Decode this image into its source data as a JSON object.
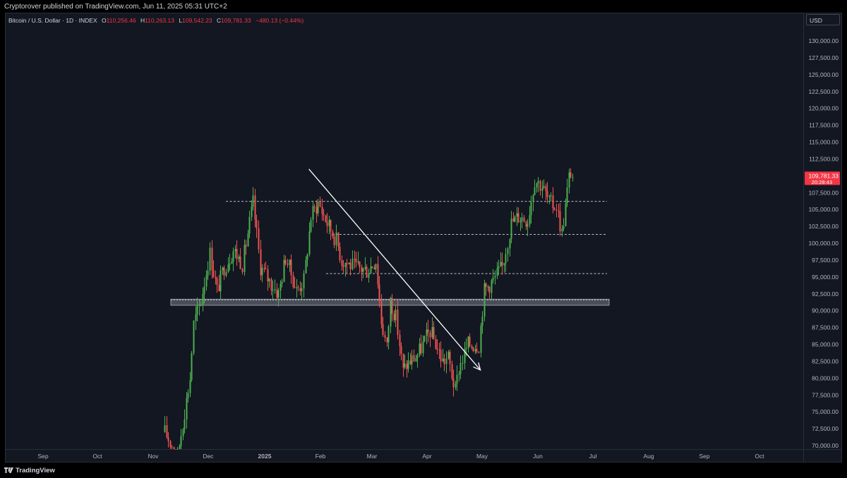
{
  "publisher_line": "Cryptorover published on TradingView.com, Jun 11, 2025 05:31 UTC+2",
  "legend": {
    "symbol": "Bitcoin / U.S. Dollar · 1D · INDEX",
    "o_label": "O",
    "o_value": "110,256.46",
    "h_label": "H",
    "h_value": "110,263.13",
    "l_label": "L",
    "l_value": "109,542.23",
    "c_label": "C",
    "c_value": "109,781.33",
    "change": "−480.13 (−0.44%)"
  },
  "currency_label": "USD",
  "last_price_label": {
    "price": "109,781.33",
    "countdown": "20:28:43"
  },
  "brand": "TradingView",
  "colors": {
    "up": "#26a69a",
    "up_bright": "#4caf50",
    "down": "#ef5350",
    "background": "#131722",
    "price_tag": "#f23645"
  },
  "chart_data": {
    "type": "candlestick",
    "title": "",
    "ylim": [
      69000,
      134000
    ],
    "x_ticks": [
      "Sep",
      "Oct",
      "Nov",
      "Dec",
      "2025",
      "Feb",
      "Mar",
      "Apr",
      "May",
      "Jun",
      "Jul",
      "Aug",
      "Sep",
      "Oct"
    ],
    "y_ticks": [
      "70,000.00",
      "72,500.00",
      "75,000.00",
      "77,500.00",
      "80,000.00",
      "82,500.00",
      "85,000.00",
      "87,500.00",
      "90,000.00",
      "92,500.00",
      "95,000.00",
      "97,500.00",
      "100,000.00",
      "102,500.00",
      "105,000.00",
      "107,500.00",
      "110,000.00",
      "112,500.00",
      "115,000.00",
      "117,500.00",
      "120,000.00",
      "122,500.00",
      "125,000.00",
      "127,500.00",
      "130,000.00"
    ],
    "price_series": [
      [
        "2024-10-28",
        72000
      ],
      [
        "2024-11-04",
        68500
      ],
      [
        "2024-11-11",
        80000
      ],
      [
        "2024-11-13",
        88000
      ],
      [
        "2024-11-17",
        91500
      ],
      [
        "2024-11-22",
        98500
      ],
      [
        "2024-11-26",
        93000
      ],
      [
        "2024-11-30",
        96500
      ],
      [
        "2024-12-05",
        99000
      ],
      [
        "2024-12-10",
        97000
      ],
      [
        "2024-12-16",
        106000
      ],
      [
        "2024-12-20",
        96500
      ],
      [
        "2024-12-26",
        94000
      ],
      [
        "2024-12-30",
        92500
      ],
      [
        "2025-01-03",
        98000
      ],
      [
        "2025-01-09",
        93000
      ],
      [
        "2025-01-13",
        94500
      ],
      [
        "2025-01-17",
        104000
      ],
      [
        "2025-01-21",
        106000
      ],
      [
        "2025-01-26",
        103000
      ],
      [
        "2025-01-31",
        100500
      ],
      [
        "2025-02-03",
        97500
      ],
      [
        "2025-02-10",
        96500
      ],
      [
        "2025-02-17",
        96000
      ],
      [
        "2025-02-22",
        97500
      ],
      [
        "2025-02-25",
        88500
      ],
      [
        "2025-02-28",
        84500
      ],
      [
        "2025-03-02",
        91500
      ],
      [
        "2025-03-05",
        89000
      ],
      [
        "2025-03-09",
        81000
      ],
      [
        "2025-03-11",
        82000
      ],
      [
        "2025-03-17",
        83500
      ],
      [
        "2025-03-24",
        87000
      ],
      [
        "2025-03-31",
        82500
      ],
      [
        "2025-04-03",
        83000
      ],
      [
        "2025-04-07",
        78000
      ],
      [
        "2025-04-09",
        81500
      ],
      [
        "2025-04-14",
        85000
      ],
      [
        "2025-04-20",
        85000
      ],
      [
        "2025-04-23",
        93000
      ],
      [
        "2025-04-28",
        94500
      ],
      [
        "2025-05-03",
        96500
      ],
      [
        "2025-05-08",
        103000
      ],
      [
        "2025-05-12",
        104000
      ],
      [
        "2025-05-17",
        103500
      ],
      [
        "2025-05-21",
        109500
      ],
      [
        "2025-05-25",
        108500
      ],
      [
        "2025-05-29",
        106000
      ],
      [
        "2025-06-02",
        105500
      ],
      [
        "2025-06-05",
        101500
      ],
      [
        "2025-06-07",
        105500
      ],
      [
        "2025-06-09",
        109800
      ],
      [
        "2025-06-11",
        109781
      ]
    ],
    "horizontal_levels": [
      106200,
      101300,
      95500
    ],
    "support_zone": [
      90800,
      91700
    ],
    "trend_arrow": {
      "from": [
        "2025-01-16",
        111000
      ],
      "to": [
        "2025-04-21",
        81200
      ]
    },
    "last_close": 109781.33,
    "grid": false
  }
}
